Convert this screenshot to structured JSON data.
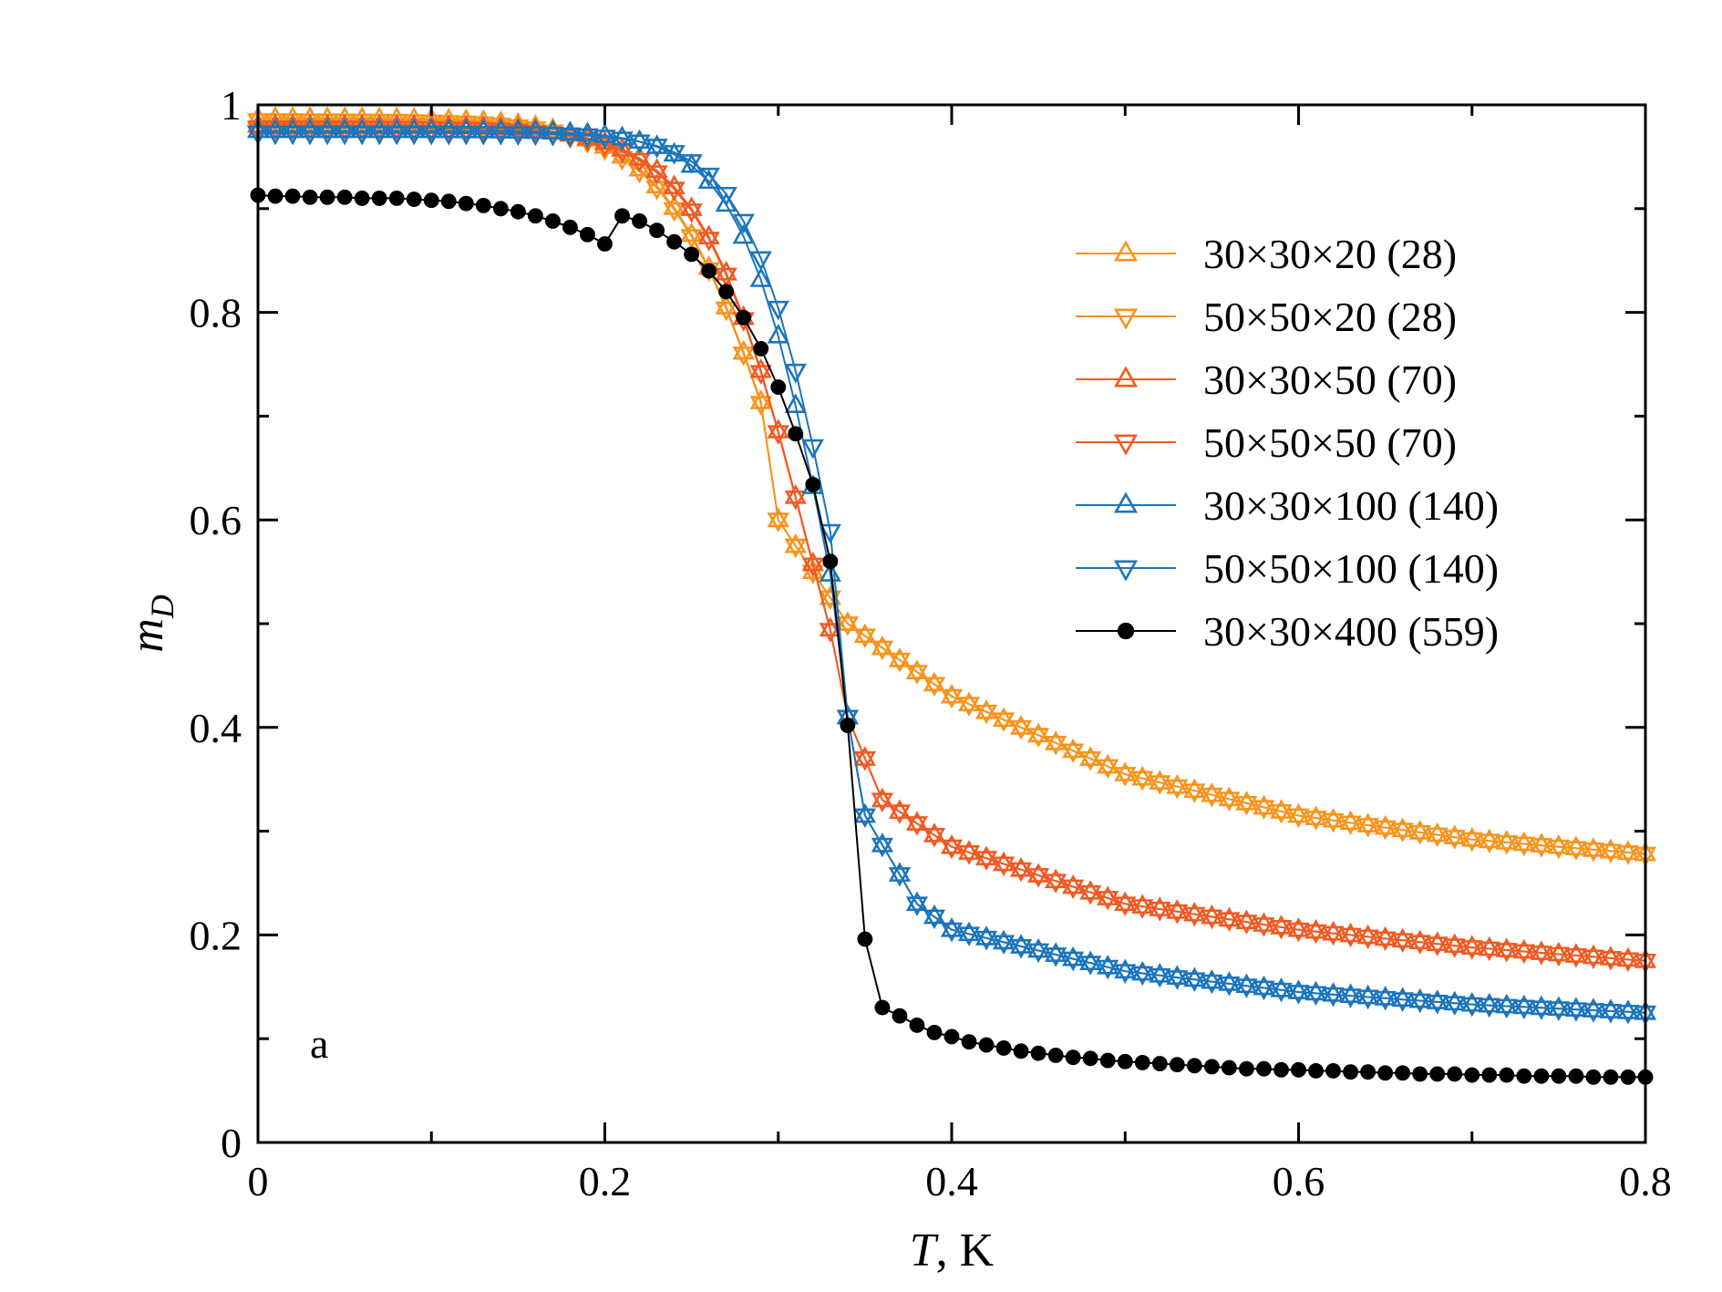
{
  "chart_data": {
    "type": "line",
    "title": "",
    "xlabel": "T",
    "xlabel_unit": ", K",
    "ylabel_main": "m",
    "ylabel_sub": "D",
    "xlim": [
      0,
      0.8
    ],
    "ylim": [
      0,
      1
    ],
    "xticks": [
      0,
      0.2,
      0.4,
      0.6,
      0.8
    ],
    "xtick_labels": [
      "0",
      "0.2",
      "0.4",
      "0.6",
      "0.8"
    ],
    "yticks": [
      0,
      0.2,
      0.4,
      0.6,
      0.8,
      1
    ],
    "ytick_labels": [
      "0",
      "0.2",
      "0.4",
      "0.6",
      "0.8",
      "1"
    ],
    "grid": false,
    "legend_position": "right",
    "panel_label": "a",
    "series": [
      {
        "name": "30×30×20 (28)",
        "color": "#F7941D",
        "marker": "triangle-up",
        "curve": {
          "a": 0.987,
          "b": 0.34,
          "tc": 0.3,
          "w": 0.032,
          "tail": [
            [
              0.3,
              0.6
            ],
            [
              0.34,
              0.5
            ],
            [
              0.4,
              0.43
            ],
            [
              0.5,
              0.355
            ],
            [
              0.6,
              0.315
            ],
            [
              0.7,
              0.292
            ],
            [
              0.8,
              0.278
            ]
          ]
        }
      },
      {
        "name": "50×50×20 (28)",
        "color": "#F7941D",
        "marker": "triangle-down",
        "curve": {
          "a": 0.985,
          "b": 0.34,
          "tc": 0.3,
          "w": 0.032,
          "tail": [
            [
              0.3,
              0.6
            ],
            [
              0.34,
              0.5
            ],
            [
              0.4,
              0.43
            ],
            [
              0.5,
              0.355
            ],
            [
              0.6,
              0.315
            ],
            [
              0.7,
              0.292
            ],
            [
              0.8,
              0.278
            ]
          ]
        }
      },
      {
        "name": "30×30×50 (70)",
        "color": "#F15A22",
        "marker": "triangle-up",
        "curve": {
          "a": 0.98,
          "b": 0.2,
          "tc": 0.315,
          "w": 0.03,
          "tail": [
            [
              0.34,
              0.41
            ],
            [
              0.36,
              0.33
            ],
            [
              0.4,
              0.285
            ],
            [
              0.5,
              0.23
            ],
            [
              0.6,
              0.205
            ],
            [
              0.7,
              0.188
            ],
            [
              0.8,
              0.175
            ]
          ]
        }
      },
      {
        "name": "50×50×50 (70)",
        "color": "#F15A22",
        "marker": "triangle-down",
        "curve": {
          "a": 0.978,
          "b": 0.2,
          "tc": 0.315,
          "w": 0.03,
          "tail": [
            [
              0.34,
              0.41
            ],
            [
              0.36,
              0.33
            ],
            [
              0.4,
              0.285
            ],
            [
              0.5,
              0.23
            ],
            [
              0.6,
              0.205
            ],
            [
              0.7,
              0.188
            ],
            [
              0.8,
              0.175
            ]
          ]
        }
      },
      {
        "name": "30×30×100 (140)",
        "color": "#1C75BC",
        "marker": "triangle-up",
        "curve": {
          "a": 0.975,
          "b": 0.12,
          "tc": 0.33,
          "w": 0.025,
          "tail": [
            [
              0.34,
              0.41
            ],
            [
              0.35,
              0.315
            ],
            [
              0.38,
              0.23
            ],
            [
              0.4,
              0.205
            ],
            [
              0.5,
              0.165
            ],
            [
              0.6,
              0.145
            ],
            [
              0.7,
              0.133
            ],
            [
              0.8,
              0.125
            ]
          ]
        }
      },
      {
        "name": "50×50×100 (140)",
        "color": "#1C75BC",
        "marker": "triangle-down",
        "curve": {
          "a": 0.973,
          "b": 0.12,
          "tc": 0.335,
          "w": 0.025,
          "tail": [
            [
              0.34,
              0.41
            ],
            [
              0.35,
              0.315
            ],
            [
              0.38,
              0.23
            ],
            [
              0.4,
              0.205
            ],
            [
              0.5,
              0.165
            ],
            [
              0.6,
              0.145
            ],
            [
              0.7,
              0.133
            ],
            [
              0.8,
              0.125
            ]
          ]
        }
      },
      {
        "name": "30×30×400 (559)",
        "color": "#000000",
        "marker": "circle",
        "points": [
          [
            0,
            0.913
          ],
          [
            0.01,
            0.912
          ],
          [
            0.02,
            0.912
          ],
          [
            0.03,
            0.911
          ],
          [
            0.04,
            0.911
          ],
          [
            0.05,
            0.911
          ],
          [
            0.06,
            0.91
          ],
          [
            0.07,
            0.91
          ],
          [
            0.08,
            0.91
          ],
          [
            0.09,
            0.909
          ],
          [
            0.1,
            0.908
          ],
          [
            0.11,
            0.907
          ],
          [
            0.12,
            0.905
          ],
          [
            0.13,
            0.903
          ],
          [
            0.14,
            0.9
          ],
          [
            0.15,
            0.897
          ],
          [
            0.16,
            0.893
          ],
          [
            0.17,
            0.888
          ],
          [
            0.18,
            0.882
          ],
          [
            0.19,
            0.875
          ],
          [
            0.2,
            0.866
          ],
          [
            0.21,
            0.893
          ],
          [
            0.22,
            0.888
          ],
          [
            0.23,
            0.879
          ],
          [
            0.24,
            0.868
          ],
          [
            0.25,
            0.856
          ],
          [
            0.26,
            0.84
          ],
          [
            0.27,
            0.82
          ],
          [
            0.28,
            0.795
          ],
          [
            0.29,
            0.765
          ],
          [
            0.3,
            0.728
          ],
          [
            0.31,
            0.683
          ],
          [
            0.32,
            0.634
          ],
          [
            0.33,
            0.56
          ],
          [
            0.34,
            0.402
          ],
          [
            0.35,
            0.196
          ],
          [
            0.36,
            0.13
          ],
          [
            0.37,
            0.122
          ],
          [
            0.38,
            0.113
          ],
          [
            0.39,
            0.106
          ],
          [
            0.4,
            0.102
          ],
          [
            0.41,
            0.097
          ],
          [
            0.42,
            0.094
          ],
          [
            0.43,
            0.091
          ],
          [
            0.44,
            0.088
          ],
          [
            0.45,
            0.086
          ],
          [
            0.46,
            0.084
          ],
          [
            0.47,
            0.082
          ],
          [
            0.48,
            0.081
          ],
          [
            0.49,
            0.079
          ],
          [
            0.5,
            0.078
          ],
          [
            0.51,
            0.077
          ],
          [
            0.52,
            0.076
          ],
          [
            0.53,
            0.075
          ],
          [
            0.54,
            0.074
          ],
          [
            0.55,
            0.073
          ],
          [
            0.56,
            0.072
          ],
          [
            0.57,
            0.071
          ],
          [
            0.58,
            0.071
          ],
          [
            0.59,
            0.07
          ],
          [
            0.6,
            0.07
          ],
          [
            0.61,
            0.069
          ],
          [
            0.62,
            0.069
          ],
          [
            0.63,
            0.068
          ],
          [
            0.64,
            0.068
          ],
          [
            0.65,
            0.067
          ],
          [
            0.66,
            0.067
          ],
          [
            0.67,
            0.066
          ],
          [
            0.68,
            0.066
          ],
          [
            0.69,
            0.066
          ],
          [
            0.7,
            0.065
          ],
          [
            0.71,
            0.065
          ],
          [
            0.72,
            0.065
          ],
          [
            0.73,
            0.064
          ],
          [
            0.74,
            0.064
          ],
          [
            0.75,
            0.064
          ],
          [
            0.76,
            0.064
          ],
          [
            0.77,
            0.063
          ],
          [
            0.78,
            0.063
          ],
          [
            0.79,
            0.063
          ],
          [
            0.8,
            0.063
          ]
        ]
      }
    ]
  }
}
